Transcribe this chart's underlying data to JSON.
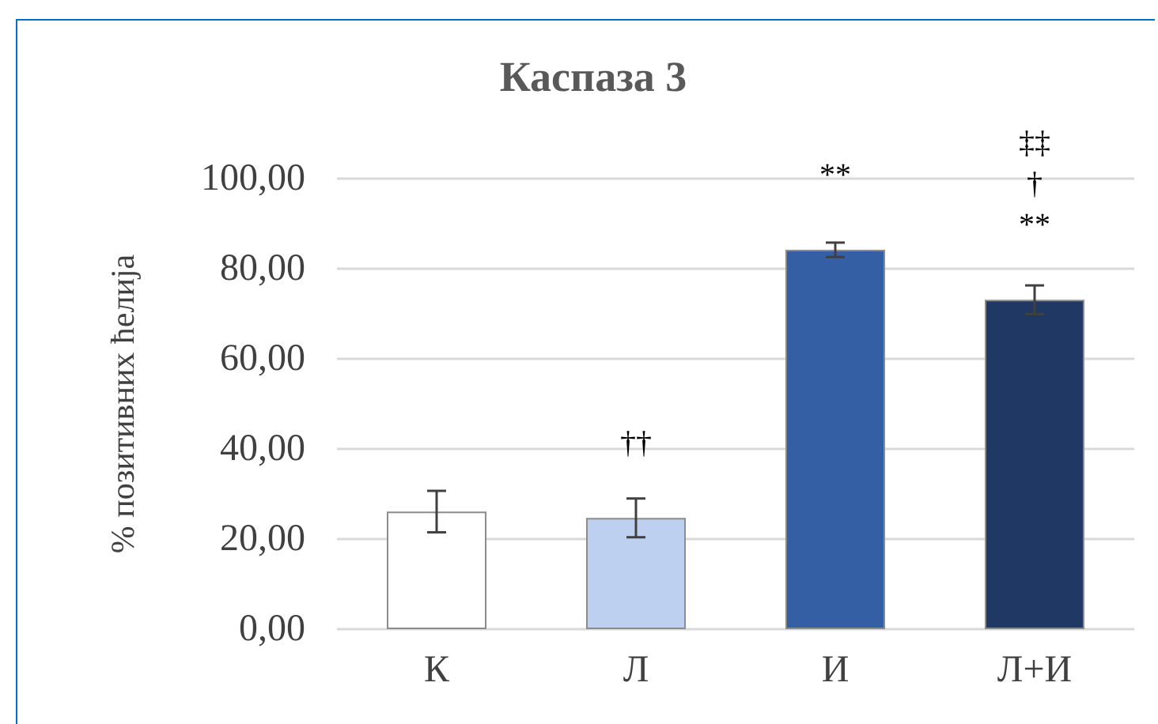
{
  "chart_data": {
    "type": "bar",
    "title": "Каспаза 3",
    "ylabel": "% позитивних ћелија",
    "categories": [
      "К",
      "Л",
      "И",
      "Л+И"
    ],
    "values": [
      26.1,
      24.7,
      84.2,
      73.1
    ],
    "colors": [
      "#ffffff",
      "#bdd0ef",
      "#355fa5",
      "#1f3864"
    ],
    "errors": [
      4.6,
      4.3,
      1.6,
      3.2
    ],
    "ylim": [
      0,
      100
    ],
    "yticks": [
      {
        "value": 0,
        "label": "0,00"
      },
      {
        "value": 20,
        "label": "20,00"
      },
      {
        "value": 40,
        "label": "40,00"
      },
      {
        "value": 60,
        "label": "60,00"
      },
      {
        "value": 80,
        "label": "80,00"
      },
      {
        "value": 100,
        "label": "100,00"
      }
    ],
    "grid": "y",
    "annotations": [
      {
        "text": "††",
        "x": "Л",
        "y": 24.7
      },
      {
        "text": "**",
        "x": "И",
        "y": 84.2
      },
      {
        "text": "‡‡\n†\n**",
        "x": "Л+И",
        "y": 73.1
      }
    ]
  }
}
